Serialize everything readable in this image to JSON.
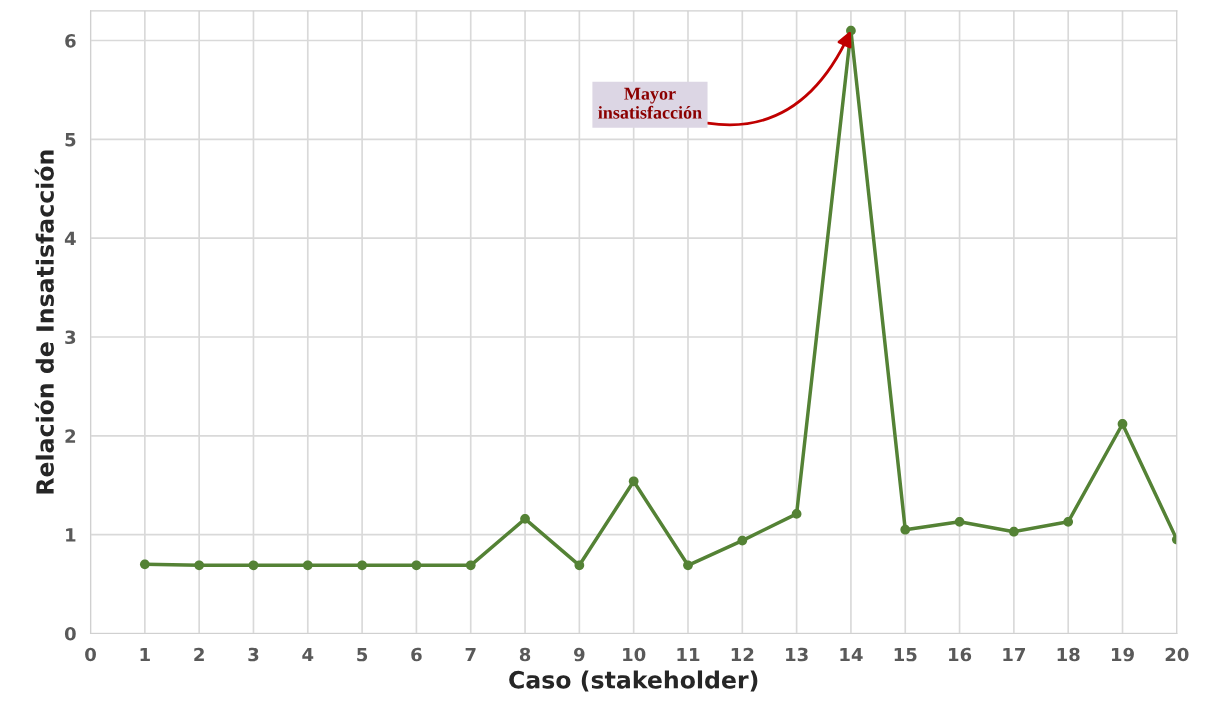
{
  "chart_data": {
    "type": "line",
    "xlabel": "Caso (stakeholder)",
    "ylabel": "Relación de Insatisfacción",
    "x": [
      1,
      2,
      3,
      4,
      5,
      6,
      7,
      8,
      9,
      10,
      11,
      12,
      13,
      14,
      15,
      16,
      17,
      18,
      19,
      20
    ],
    "series": [
      {
        "color": "#548235",
        "values": [
          0.7,
          0.69,
          0.69,
          0.69,
          0.69,
          0.69,
          0.69,
          1.16,
          0.69,
          1.54,
          0.69,
          0.94,
          1.21,
          6.1,
          1.05,
          1.13,
          1.03,
          1.13,
          2.12,
          0.95
        ]
      }
    ],
    "xlim": [
      0,
      20
    ],
    "xticks": [
      0,
      1,
      2,
      3,
      4,
      5,
      6,
      7,
      8,
      9,
      10,
      11,
      12,
      13,
      14,
      15,
      16,
      17,
      18,
      19,
      20
    ],
    "ylim": [
      0,
      6.3
    ],
    "yticks": [
      0,
      1,
      2,
      3,
      4,
      5,
      6
    ],
    "annotations": [
      {
        "text": "Mayor\ninsatisfacción",
        "x": 14,
        "y": 6.1
      }
    ],
    "grid": true,
    "marker": "circle",
    "line_style": "solid",
    "legend": false
  }
}
